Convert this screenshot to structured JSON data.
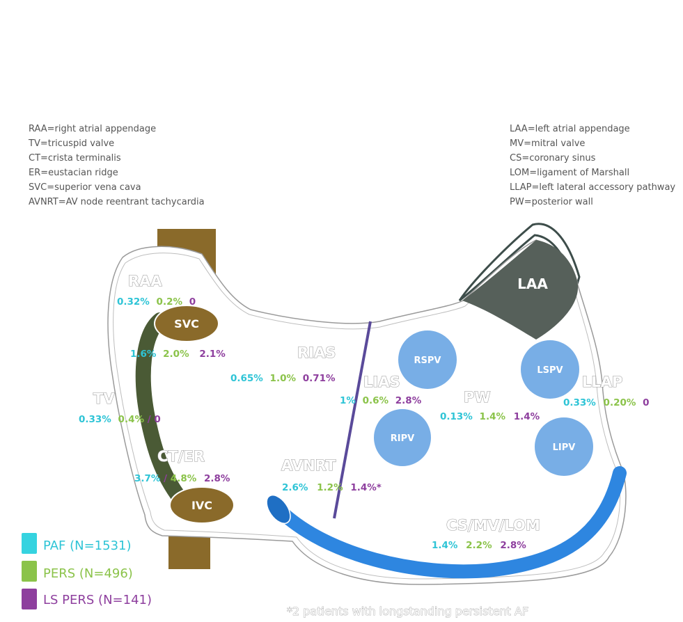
{
  "abbreviations_left": [
    "RAA=right atrial appendage",
    "TV=tricuspid valve",
    "CT=crista terminalis",
    "ER=eustacian ridge",
    "SVC=superior vena cava",
    "AVNRT=AV node reentrant tachycardia"
  ],
  "abbreviations_right": [
    "LAA=left atrial appendage",
    "MV=mitral valve",
    "CS=coronary sinus",
    "LOM=ligament of Marshall",
    "LLAP=left lateral accessory pathway",
    "PW=posterior wall"
  ],
  "structures": {
    "svc": "SVC",
    "ivc": "IVC",
    "laa": "LAA",
    "rspv": "RSPV",
    "ripv": "RIPV",
    "lspv": "LSPV",
    "lipv": "LIPV"
  },
  "regions": {
    "raa": {
      "label": "RAA",
      "paf": "0.32%",
      "pers": "0.2%",
      "ls": "0"
    },
    "svc": {
      "paf": "1.6%",
      "pers": "2.0%",
      "ls": "2.1%"
    },
    "rias": {
      "label": "RIAS",
      "paf": "0.65%",
      "pers": "1.0%",
      "ls": "0.71%"
    },
    "tv": {
      "label": "TV",
      "paf": "0.33%",
      "pers": "0.4%",
      "sep": "/",
      "ls": "0"
    },
    "ct_er": {
      "label": "CT/ER",
      "paf": "3.7%",
      "sep": "/",
      "pers": "4.8%",
      "ls": "2.8%"
    },
    "avnrt": {
      "label": "AVNRT",
      "paf": "2.6%",
      "pers": "1.2%",
      "ls": "1.4%*"
    },
    "lias": {
      "label": "LIAS",
      "paf": "1%",
      "pers": "0.6%",
      "ls": "2.8%"
    },
    "pw": {
      "label": "PW",
      "paf": "0.13%",
      "pers": "1.4%",
      "ls": "1.4%"
    },
    "llap": {
      "label": "LLAP",
      "paf": "0.33%",
      "pers": "0.20%",
      "ls": "0"
    },
    "cs": {
      "label": "CS/MV/LOM",
      "paf": "1.4%",
      "pers": "2.2%",
      "ls": "2.8%"
    }
  },
  "legend": [
    {
      "label": "PAF (N=1531)",
      "color": "#35d3e0"
    },
    {
      "label": "PERS (N=496)",
      "color": "#8bc34a"
    },
    {
      "label": "LS PERS (N=141)",
      "color": "#8e3f9e"
    }
  ],
  "footnote": "*2 patients with longstanding persistent AF",
  "colors": {
    "paf": "#2ec4d6",
    "pers": "#8bc34a",
    "ls": "#8e3f9e",
    "vena_cava": "#8a6a2a",
    "crista": "#4a5a35",
    "laa": "#56605a",
    "pulmonary_vein": "#78aee6",
    "coronary_sinus": "#2e86e0",
    "septum_line": "#5a4a9a"
  }
}
